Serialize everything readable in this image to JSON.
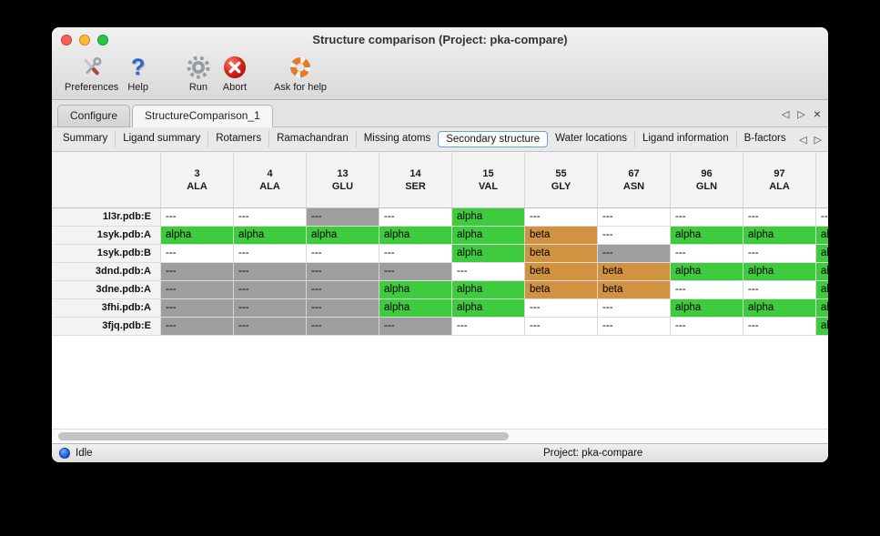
{
  "window": {
    "title": "Structure comparison (Project: pka-compare)"
  },
  "toolbar": {
    "items": [
      {
        "label": "Preferences",
        "icon": "tools-icon"
      },
      {
        "label": "Help",
        "icon": "question-icon"
      },
      {
        "label": "Run",
        "icon": "gear-icon"
      },
      {
        "label": "Abort",
        "icon": "abort-icon"
      },
      {
        "label": "Ask for help",
        "icon": "lifering-icon"
      }
    ]
  },
  "icons": {
    "help_glyph": "?"
  },
  "tabs": {
    "items": [
      {
        "label": "Configure",
        "selected": false
      },
      {
        "label": "StructureComparison_1",
        "selected": true
      }
    ],
    "nav": {
      "prev": "◁",
      "next": "▷",
      "close": "×"
    }
  },
  "subtabs": {
    "items": [
      {
        "label": "Summary",
        "selected": false
      },
      {
        "label": "Ligand summary",
        "selected": false
      },
      {
        "label": "Rotamers",
        "selected": false
      },
      {
        "label": "Ramachandran",
        "selected": false
      },
      {
        "label": "Missing atoms",
        "selected": false
      },
      {
        "label": "Secondary structure",
        "selected": true
      },
      {
        "label": "Water locations",
        "selected": false
      },
      {
        "label": "Ligand information",
        "selected": false
      },
      {
        "label": "B-factors",
        "selected": false
      }
    ],
    "nav": {
      "prev": "◁",
      "next": "▷"
    }
  },
  "table": {
    "columns": [
      {
        "num": "3",
        "res": "ALA"
      },
      {
        "num": "4",
        "res": "ALA"
      },
      {
        "num": "13",
        "res": "GLU"
      },
      {
        "num": "14",
        "res": "SER"
      },
      {
        "num": "15",
        "res": "VAL"
      },
      {
        "num": "55",
        "res": "GLY"
      },
      {
        "num": "67",
        "res": "ASN"
      },
      {
        "num": "96",
        "res": "GLN"
      },
      {
        "num": "97",
        "res": "ALA"
      },
      {
        "num": "",
        "res": ""
      }
    ],
    "rows": [
      {
        "name": "1l3r.pdb:E",
        "values": [
          "---",
          "---",
          "---",
          "---",
          "alpha",
          "---",
          "---",
          "---",
          "---",
          "---"
        ],
        "states": [
          "blank",
          "blank",
          "missing",
          "blank",
          "alpha",
          "blank",
          "blank",
          "blank",
          "blank",
          "blank"
        ]
      },
      {
        "name": "1syk.pdb:A",
        "values": [
          "alpha",
          "alpha",
          "alpha",
          "alpha",
          "alpha",
          "beta",
          "---",
          "alpha",
          "alpha",
          "alpha"
        ],
        "states": [
          "alpha",
          "alpha",
          "alpha",
          "alpha",
          "alpha",
          "beta",
          "blank",
          "alpha",
          "alpha",
          "alpha"
        ]
      },
      {
        "name": "1syk.pdb:B",
        "values": [
          "---",
          "---",
          "---",
          "---",
          "alpha",
          "beta",
          "---",
          "---",
          "---",
          "alpha"
        ],
        "states": [
          "blank",
          "blank",
          "blank",
          "blank",
          "alpha",
          "beta",
          "missing",
          "blank",
          "blank",
          "alpha"
        ]
      },
      {
        "name": "3dnd.pdb:A",
        "values": [
          "---",
          "---",
          "---",
          "---",
          "---",
          "beta",
          "beta",
          "alpha",
          "alpha",
          "alpha"
        ],
        "states": [
          "missing",
          "missing",
          "missing",
          "missing",
          "blank",
          "beta",
          "beta",
          "alpha",
          "alpha",
          "alpha"
        ]
      },
      {
        "name": "3dne.pdb:A",
        "values": [
          "---",
          "---",
          "---",
          "alpha",
          "alpha",
          "beta",
          "beta",
          "---",
          "---",
          "alpha"
        ],
        "states": [
          "missing",
          "missing",
          "missing",
          "alpha",
          "alpha",
          "beta",
          "beta",
          "blank",
          "blank",
          "alpha"
        ]
      },
      {
        "name": "3fhi.pdb:A",
        "values": [
          "---",
          "---",
          "---",
          "alpha",
          "alpha",
          "---",
          "---",
          "alpha",
          "alpha",
          "alpha"
        ],
        "states": [
          "missing",
          "missing",
          "missing",
          "alpha",
          "alpha",
          "blank",
          "blank",
          "alpha",
          "alpha",
          "alpha"
        ]
      },
      {
        "name": "3fjq.pdb:E",
        "values": [
          "---",
          "---",
          "---",
          "---",
          "---",
          "---",
          "---",
          "---",
          "---",
          "alpha"
        ],
        "states": [
          "missing",
          "missing",
          "missing",
          "missing",
          "blank",
          "blank",
          "blank",
          "blank",
          "blank",
          "alpha"
        ]
      }
    ]
  },
  "statusbar": {
    "status": "Idle",
    "project": "Project: pka-compare"
  },
  "colors": {
    "alpha": "#3ecb3e",
    "beta": "#d1933f",
    "missing": "#9e9e9e",
    "close": "#ff5f57",
    "minimize": "#febc2e",
    "zoom": "#28c840",
    "status_dot": "#2a6de0"
  }
}
